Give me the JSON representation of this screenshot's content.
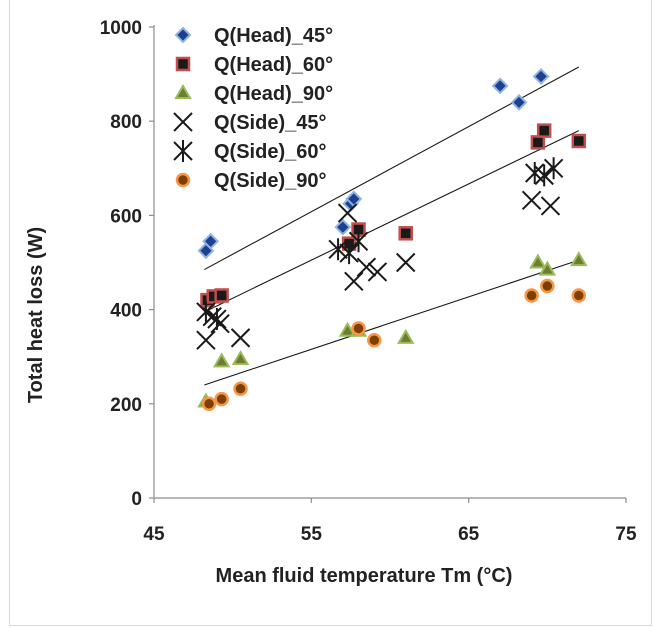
{
  "chart_data": {
    "type": "scatter",
    "title": "",
    "xlabel": "Mean fluid temperature  Tm (°C)",
    "ylabel": "Total heat loss (W)",
    "xlim": [
      45,
      75
    ],
    "ylim": [
      0,
      1000
    ],
    "xticks": [
      "45",
      "55",
      "65",
      "75"
    ],
    "yticks": [
      "0",
      "200",
      "400",
      "600",
      "800",
      "1000"
    ],
    "grid": false,
    "legend_position": "top-left",
    "series": [
      {
        "name": "Q(Head)_45°",
        "marker": "diamond",
        "color": "#1f3f8f",
        "edge": "#8eb4e3",
        "points": [
          [
            48.3,
            525
          ],
          [
            48.6,
            545
          ],
          [
            57,
            575
          ],
          [
            57.5,
            625
          ],
          [
            57.7,
            635
          ],
          [
            67,
            875
          ],
          [
            68.2,
            840
          ],
          [
            69.6,
            895
          ]
        ]
      },
      {
        "name": "Q(Head)_60°",
        "marker": "square",
        "color": "#1a1a1a",
        "edge": "#c0504d",
        "points": [
          [
            48.4,
            420
          ],
          [
            48.8,
            428
          ],
          [
            49.3,
            430
          ],
          [
            57.4,
            540
          ],
          [
            58,
            570
          ],
          [
            61,
            562
          ],
          [
            69.4,
            755
          ],
          [
            69.8,
            780
          ],
          [
            72,
            758
          ]
        ]
      },
      {
        "name": "Q(Head)_90°",
        "marker": "triangle",
        "color": "#6e7d32",
        "edge": "#9bbb59",
        "points": [
          [
            48.3,
            205
          ],
          [
            49.3,
            290
          ],
          [
            50.5,
            295
          ],
          [
            57.3,
            355
          ],
          [
            58,
            355
          ],
          [
            61,
            340
          ],
          [
            69.4,
            500
          ],
          [
            70,
            485
          ],
          [
            72,
            505
          ]
        ]
      },
      {
        "name": "Q(Side)_45°",
        "marker": "x",
        "color": "#1a1a1a",
        "edge": "#1a1a1a",
        "points": [
          [
            48.3,
            335
          ],
          [
            48.7,
            385
          ],
          [
            49.2,
            370
          ],
          [
            50.5,
            340
          ],
          [
            57.3,
            605
          ],
          [
            57.7,
            460
          ],
          [
            58.5,
            490
          ],
          [
            59.2,
            480
          ],
          [
            61,
            500
          ],
          [
            69,
            632
          ],
          [
            70.2,
            620
          ]
        ]
      },
      {
        "name": "Q(Side)_60°",
        "marker": "asterisk",
        "color": "#1a1a1a",
        "edge": "#1a1a1a",
        "points": [
          [
            48.3,
            395
          ],
          [
            49,
            380
          ],
          [
            56.7,
            528
          ],
          [
            57.4,
            520
          ],
          [
            58,
            545
          ],
          [
            69.2,
            690
          ],
          [
            69.8,
            685
          ],
          [
            70.4,
            700
          ]
        ]
      },
      {
        "name": "Q(Side)_90°",
        "marker": "circle",
        "color": "#7f3f00",
        "edge": "#f79646",
        "points": [
          [
            48.5,
            200
          ],
          [
            49.3,
            210
          ],
          [
            50.5,
            232
          ],
          [
            58,
            360
          ],
          [
            59,
            335
          ],
          [
            69,
            430
          ],
          [
            70,
            450
          ],
          [
            72,
            430
          ]
        ]
      }
    ],
    "trendlines": [
      {
        "x": [
          48.2,
          72
        ],
        "y": [
          485,
          915
        ]
      },
      {
        "x": [
          48.2,
          72
        ],
        "y": [
          395,
          780
        ]
      },
      {
        "x": [
          48.2,
          72
        ],
        "y": [
          240,
          505
        ]
      }
    ]
  }
}
